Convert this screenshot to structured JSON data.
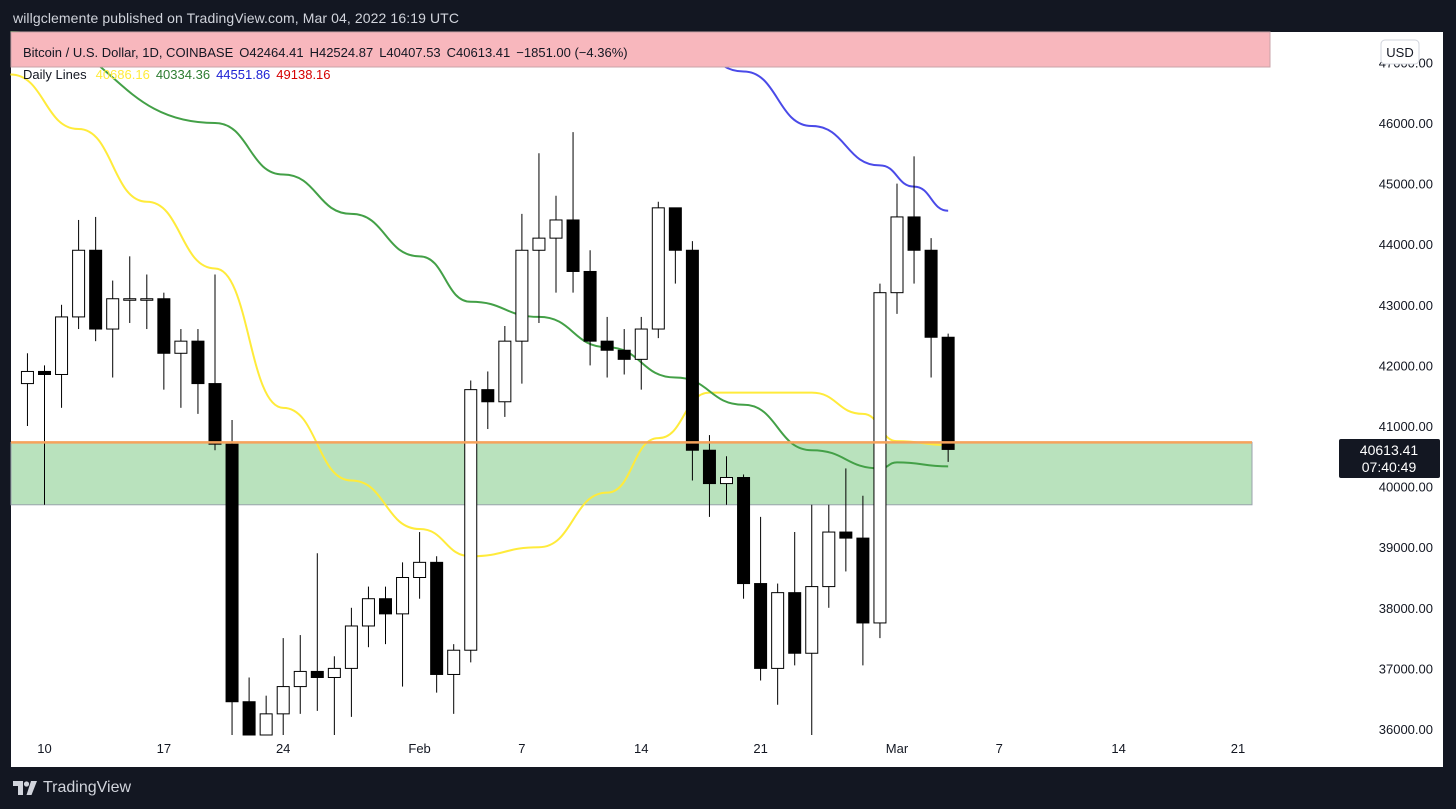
{
  "header": {
    "publisher_line": "willgclemente published on TradingView.com, Mar 04, 2022 16:19 UTC"
  },
  "footer": {
    "brand": "TradingView"
  },
  "legend": {
    "symbol_line": "Bitcoin / U.S. Dollar, 1D, COINBASE",
    "open": "O42464.41",
    "high": "H42524.87",
    "low": "L40407.53",
    "close": "C40613.41",
    "change": "−1851.00 (−4.36%)",
    "indicator_label": "Daily Lines",
    "indicator_values": [
      {
        "text": "40686.16",
        "color": "#ffeb3b"
      },
      {
        "text": "40334.36",
        "color": "#2e7d32"
      },
      {
        "text": "44551.86",
        "color": "#1e22d4"
      },
      {
        "text": "49138.16",
        "color": "#d50000"
      }
    ]
  },
  "currency_button": "USD",
  "price_badge": {
    "price": "40613.41",
    "countdown": "07:40:49"
  },
  "colors": {
    "legend_band": "#f8b7bd",
    "zone_fill": "#b9e2bd",
    "zone_border": "#9aa2ac",
    "support_line": "#f6a35c",
    "ma_yellow": "#ffeb3b",
    "ma_green": "#43a047",
    "ma_blue": "#4a4ae8",
    "candle_up_fill": "#ffffff",
    "candle_down_fill": "#000000"
  },
  "chart_data": {
    "type": "candlestick",
    "symbol": "Bitcoin / U.S. Dollar",
    "interval": "1D",
    "exchange": "COINBASE",
    "x_tick_labels": [
      "10",
      "17",
      "24",
      "Feb",
      "7",
      "14",
      "21",
      "Mar",
      "7",
      "14",
      "21"
    ],
    "y_tick_labels": [
      "36000.00",
      "37000.00",
      "38000.00",
      "39000.00",
      "40000.00",
      "41000.00",
      "42000.00",
      "43000.00",
      "44000.00",
      "45000.00",
      "46000.00",
      "47000.00"
    ],
    "y_range": [
      36000,
      47000
    ],
    "candles": [
      {
        "date": "2022-01-09",
        "o": 41700,
        "h": 42200,
        "l": 41000,
        "c": 41900
      },
      {
        "date": "2022-01-10",
        "o": 41900,
        "h": 42000,
        "l": 39700,
        "c": 41850
      },
      {
        "date": "2022-01-11",
        "o": 41850,
        "h": 43000,
        "l": 41300,
        "c": 42800
      },
      {
        "date": "2022-01-12",
        "o": 42800,
        "h": 44400,
        "l": 42600,
        "c": 43900
      },
      {
        "date": "2022-01-13",
        "o": 43900,
        "h": 44450,
        "l": 42400,
        "c": 42600
      },
      {
        "date": "2022-01-14",
        "o": 42600,
        "h": 43400,
        "l": 41800,
        "c": 43100
      },
      {
        "date": "2022-01-15",
        "o": 43100,
        "h": 43800,
        "l": 42700,
        "c": 43100
      },
      {
        "date": "2022-01-16",
        "o": 43100,
        "h": 43500,
        "l": 42600,
        "c": 43100
      },
      {
        "date": "2022-01-17",
        "o": 43100,
        "h": 43200,
        "l": 41600,
        "c": 42200
      },
      {
        "date": "2022-01-18",
        "o": 42200,
        "h": 42600,
        "l": 41300,
        "c": 42400
      },
      {
        "date": "2022-01-19",
        "o": 42400,
        "h": 42600,
        "l": 41200,
        "c": 41700
      },
      {
        "date": "2022-01-20",
        "o": 41700,
        "h": 43500,
        "l": 40600,
        "c": 40700
      },
      {
        "date": "2022-01-21",
        "o": 40700,
        "h": 41100,
        "l": 35900,
        "c": 36450
      },
      {
        "date": "2022-01-22",
        "o": 36450,
        "h": 36850,
        "l": 35000,
        "c": 35050
      },
      {
        "date": "2022-01-23",
        "o": 35050,
        "h": 36550,
        "l": 34600,
        "c": 36250
      },
      {
        "date": "2022-01-24",
        "o": 36250,
        "h": 37500,
        "l": 33000,
        "c": 36700
      },
      {
        "date": "2022-01-25",
        "o": 36700,
        "h": 37550,
        "l": 36250,
        "c": 36950
      },
      {
        "date": "2022-01-26",
        "o": 36950,
        "h": 38900,
        "l": 36300,
        "c": 36850
      },
      {
        "date": "2022-01-27",
        "o": 36850,
        "h": 37200,
        "l": 35500,
        "c": 37000
      },
      {
        "date": "2022-01-28",
        "o": 37000,
        "h": 38000,
        "l": 36200,
        "c": 37700
      },
      {
        "date": "2022-01-29",
        "o": 37700,
        "h": 38350,
        "l": 37350,
        "c": 38150
      },
      {
        "date": "2022-01-30",
        "o": 38150,
        "h": 38350,
        "l": 37400,
        "c": 37900
      },
      {
        "date": "2022-01-31",
        "o": 37900,
        "h": 38750,
        "l": 36700,
        "c": 38500
      },
      {
        "date": "2022-02-01",
        "o": 38500,
        "h": 39250,
        "l": 38150,
        "c": 38750
      },
      {
        "date": "2022-02-02",
        "o": 38750,
        "h": 38850,
        "l": 36600,
        "c": 36900
      },
      {
        "date": "2022-02-03",
        "o": 36900,
        "h": 37400,
        "l": 36250,
        "c": 37300
      },
      {
        "date": "2022-02-04",
        "o": 37300,
        "h": 41750,
        "l": 37100,
        "c": 41600
      },
      {
        "date": "2022-02-05",
        "o": 41600,
        "h": 41900,
        "l": 40950,
        "c": 41400
      },
      {
        "date": "2022-02-06",
        "o": 41400,
        "h": 42650,
        "l": 41150,
        "c": 42400
      },
      {
        "date": "2022-02-07",
        "o": 42400,
        "h": 44500,
        "l": 41700,
        "c": 43900
      },
      {
        "date": "2022-02-08",
        "o": 43900,
        "h": 45500,
        "l": 42700,
        "c": 44100
      },
      {
        "date": "2022-02-09",
        "o": 44100,
        "h": 44800,
        "l": 43200,
        "c": 44400
      },
      {
        "date": "2022-02-10",
        "o": 44400,
        "h": 45850,
        "l": 43200,
        "c": 43550
      },
      {
        "date": "2022-02-11",
        "o": 43550,
        "h": 43900,
        "l": 42000,
        "c": 42400
      },
      {
        "date": "2022-02-12",
        "o": 42400,
        "h": 42800,
        "l": 41800,
        "c": 42250
      },
      {
        "date": "2022-02-13",
        "o": 42250,
        "h": 42600,
        "l": 41850,
        "c": 42100
      },
      {
        "date": "2022-02-14",
        "o": 42100,
        "h": 42800,
        "l": 41600,
        "c": 42600
      },
      {
        "date": "2022-02-15",
        "o": 42600,
        "h": 44700,
        "l": 42450,
        "c": 44600
      },
      {
        "date": "2022-02-16",
        "o": 44600,
        "h": 44600,
        "l": 43350,
        "c": 43900
      },
      {
        "date": "2022-02-17",
        "o": 43900,
        "h": 44050,
        "l": 40100,
        "c": 40600
      },
      {
        "date": "2022-02-18",
        "o": 40600,
        "h": 40850,
        "l": 39500,
        "c": 40050
      },
      {
        "date": "2022-02-19",
        "o": 40050,
        "h": 40500,
        "l": 39700,
        "c": 40150
      },
      {
        "date": "2022-02-20",
        "o": 40150,
        "h": 40200,
        "l": 38150,
        "c": 38400
      },
      {
        "date": "2022-02-21",
        "o": 38400,
        "h": 39500,
        "l": 36800,
        "c": 37000
      },
      {
        "date": "2022-02-22",
        "o": 37000,
        "h": 38400,
        "l": 36400,
        "c": 38250
      },
      {
        "date": "2022-02-23",
        "o": 38250,
        "h": 39250,
        "l": 37050,
        "c": 37250
      },
      {
        "date": "2022-02-24",
        "o": 37250,
        "h": 39700,
        "l": 34600,
        "c": 38350
      },
      {
        "date": "2022-02-25",
        "o": 38350,
        "h": 39700,
        "l": 38000,
        "c": 39250
      },
      {
        "date": "2022-02-26",
        "o": 39250,
        "h": 40300,
        "l": 38600,
        "c": 39150
      },
      {
        "date": "2022-02-27",
        "o": 39150,
        "h": 39850,
        "l": 37050,
        "c": 37750
      },
      {
        "date": "2022-02-28",
        "o": 37750,
        "h": 43350,
        "l": 37500,
        "c": 43200
      },
      {
        "date": "2022-03-01",
        "o": 43200,
        "h": 45000,
        "l": 42850,
        "c": 44450
      },
      {
        "date": "2022-03-02",
        "o": 44450,
        "h": 45450,
        "l": 43350,
        "c": 43900
      },
      {
        "date": "2022-03-03",
        "o": 43900,
        "h": 44100,
        "l": 41800,
        "c": 42464.41
      },
      {
        "date": "2022-03-04",
        "o": 42464.41,
        "h": 42524.87,
        "l": 40407.53,
        "c": 40613.41
      }
    ],
    "support_zone": {
      "low": 39700,
      "high": 40730
    },
    "moving_averages": [
      {
        "color": "yellow",
        "last_value": 40686.16,
        "points": [
          [
            "2022-01-08",
            46800
          ],
          [
            "2022-01-12",
            45900
          ],
          [
            "2022-01-16",
            44700
          ],
          [
            "2022-01-20",
            43600
          ],
          [
            "2022-01-24",
            41300
          ],
          [
            "2022-01-28",
            40100
          ],
          [
            "2022-02-01",
            39300
          ],
          [
            "2022-02-04",
            38850
          ],
          [
            "2022-02-08",
            39000
          ],
          [
            "2022-02-12",
            39900
          ],
          [
            "2022-02-15",
            40800
          ],
          [
            "2022-02-18",
            41550
          ],
          [
            "2022-02-21",
            41550
          ],
          [
            "2022-02-24",
            41550
          ],
          [
            "2022-02-27",
            41200
          ],
          [
            "2022-03-01",
            40750
          ],
          [
            "2022-03-04",
            40686.16
          ]
        ]
      },
      {
        "color": "green",
        "last_value": 40334.36,
        "points": [
          [
            "2022-01-08",
            47500
          ],
          [
            "2022-01-20",
            46000
          ],
          [
            "2022-01-24",
            45150
          ],
          [
            "2022-01-28",
            44500
          ],
          [
            "2022-02-01",
            43800
          ],
          [
            "2022-02-04",
            43050
          ],
          [
            "2022-02-08",
            42800
          ],
          [
            "2022-02-12",
            42300
          ],
          [
            "2022-02-16",
            41800
          ],
          [
            "2022-02-20",
            41350
          ],
          [
            "2022-02-24",
            40600
          ],
          [
            "2022-02-28",
            40300
          ],
          [
            "2022-03-01",
            40400
          ],
          [
            "2022-03-04",
            40334.36
          ]
        ]
      },
      {
        "color": "blue",
        "last_value": 44551.86,
        "points": [
          [
            "2022-02-16",
            47450
          ],
          [
            "2022-02-20",
            46850
          ],
          [
            "2022-02-24",
            45950
          ],
          [
            "2022-02-28",
            45300
          ],
          [
            "2022-03-02",
            44950
          ],
          [
            "2022-03-04",
            44551.86
          ]
        ]
      }
    ],
    "last_price": 40613.41
  }
}
